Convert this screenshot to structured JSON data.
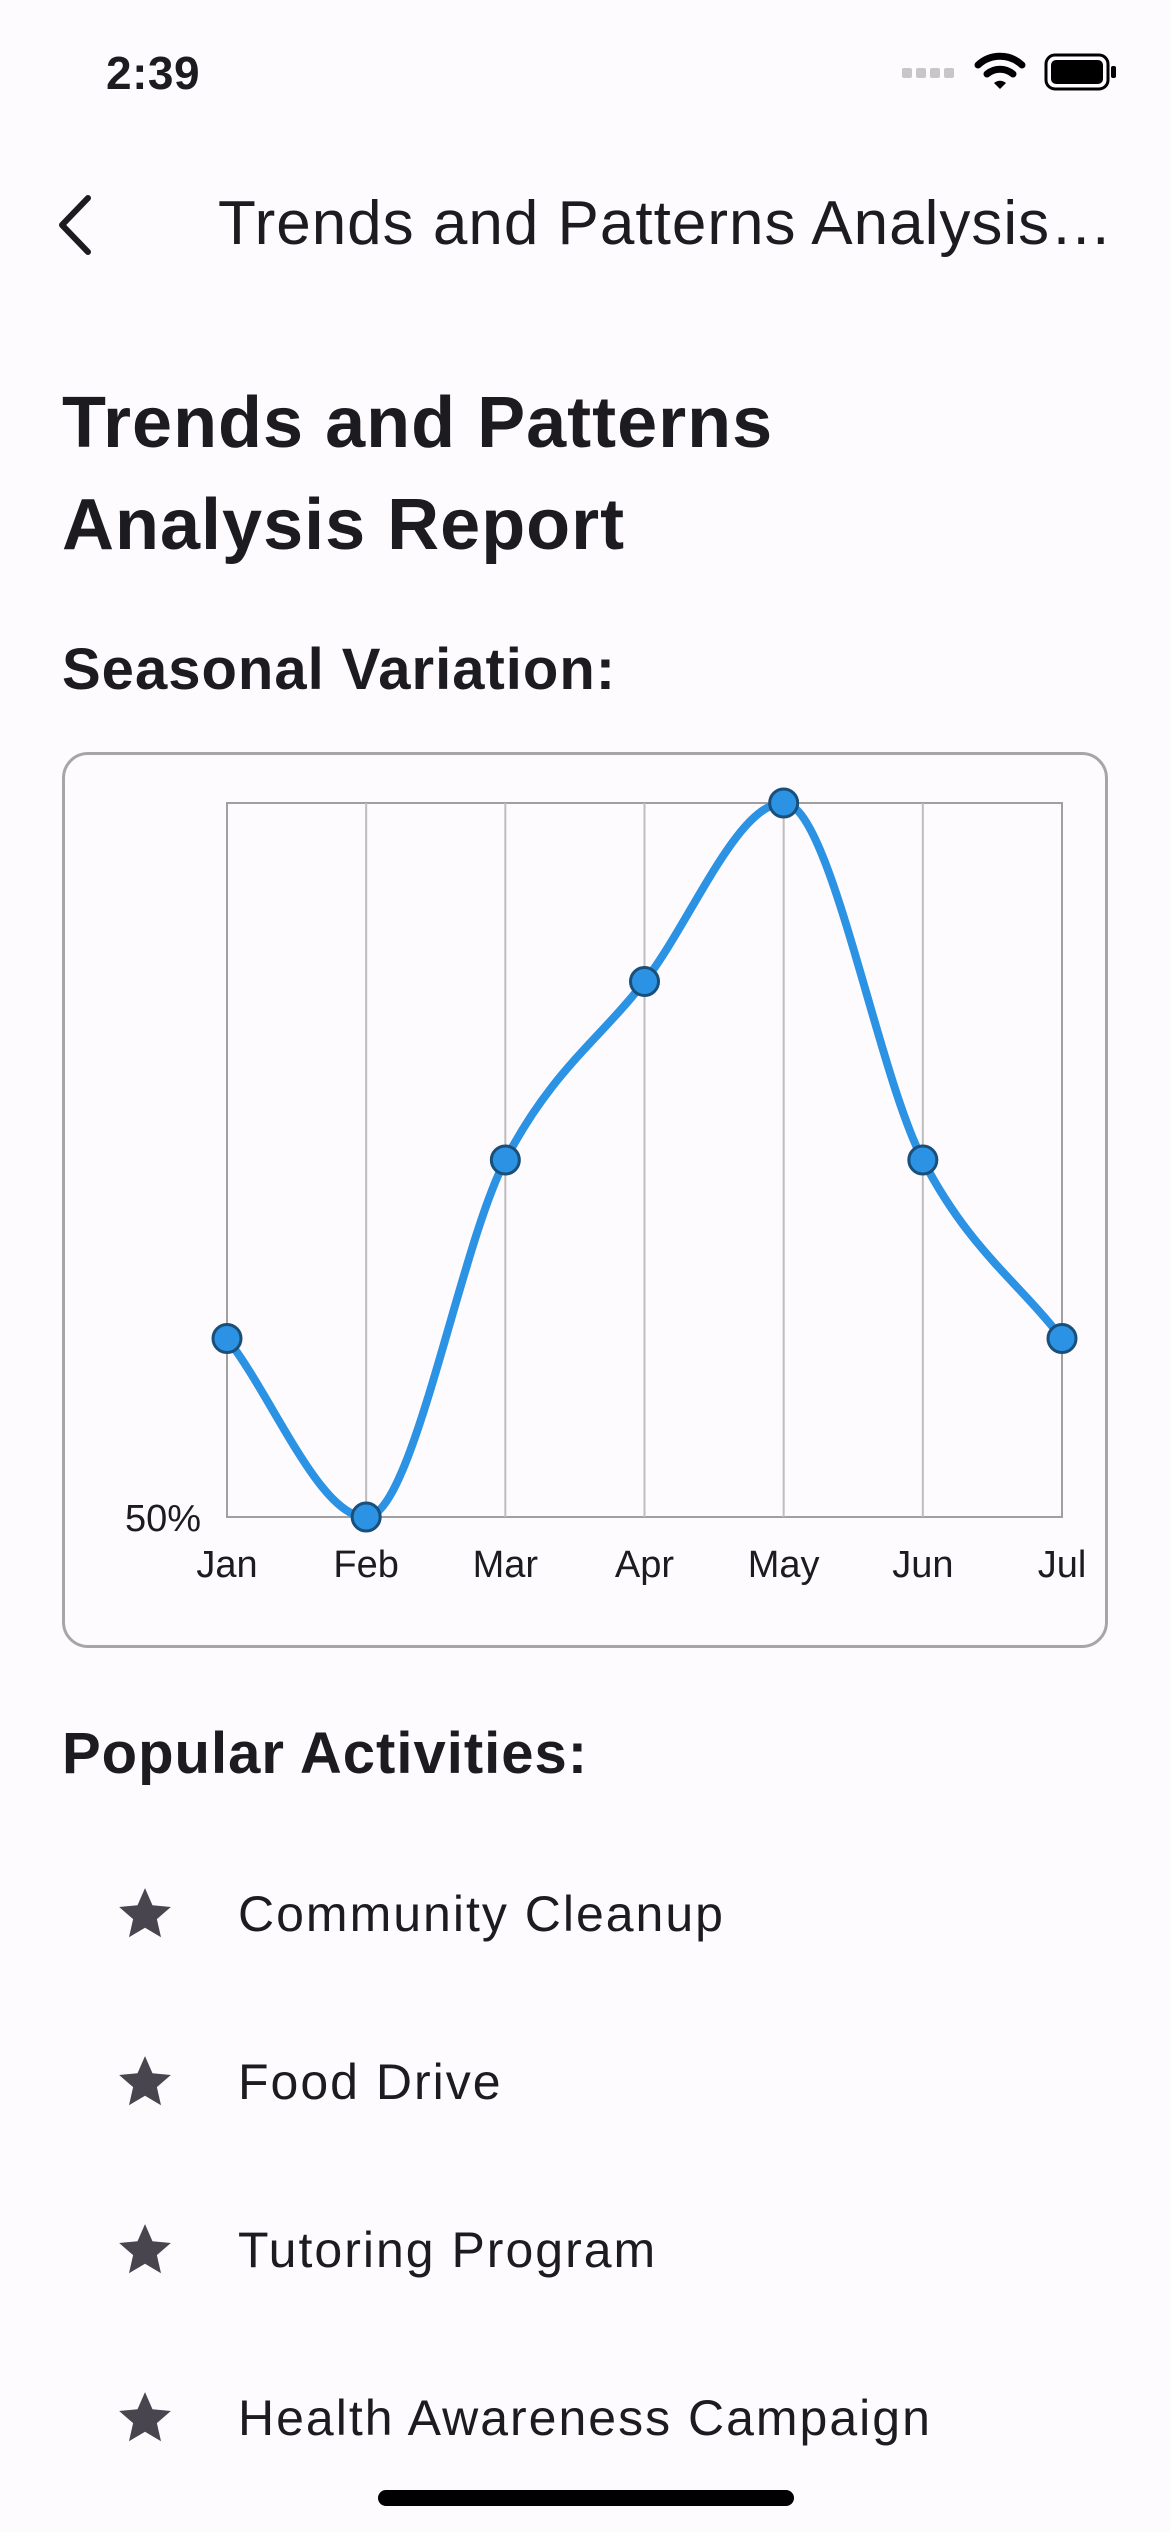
{
  "status_bar": {
    "time": "2:39"
  },
  "app_bar": {
    "title": "Trends and Patterns Analysis Report",
    "back_icon": "chevron-left-icon"
  },
  "page": {
    "title": "Trends and Patterns Analysis Report",
    "seasonal_heading": "Seasonal Variation:",
    "activities_heading": "Popular Activities:"
  },
  "chart_data": {
    "type": "line",
    "categories": [
      "Jan",
      "Feb",
      "Mar",
      "Apr",
      "May",
      "Jun",
      "Jul"
    ],
    "values": [
      55,
      50,
      60,
      65,
      70,
      60,
      55
    ],
    "ylim": [
      50,
      70
    ],
    "y_tick_labels": [
      "50%"
    ],
    "grid": "vertical",
    "line_color": "#2b92e4",
    "smooth": true
  },
  "activities": [
    {
      "label": "Community Cleanup",
      "icon": "star-icon"
    },
    {
      "label": "Food Drive",
      "icon": "star-icon"
    },
    {
      "label": "Tutoring Program",
      "icon": "star-icon"
    },
    {
      "label": "Health Awareness Campaign",
      "icon": "star-icon"
    }
  ]
}
